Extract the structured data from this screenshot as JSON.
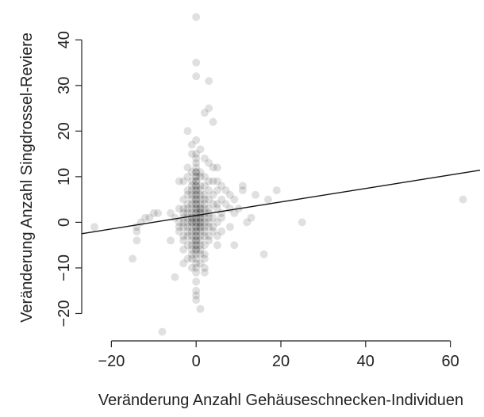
{
  "chart_data": {
    "type": "scatter",
    "title": "",
    "xlabel": "Veränderung Anzahl Gehäuseschnecken-Individuen",
    "ylabel": "Veränderung Anzahl Singdrossel-Reviere",
    "xlim": [
      -27,
      67
    ],
    "ylim": [
      -26,
      47
    ],
    "x_ticks": [
      -20,
      0,
      20,
      40,
      60
    ],
    "x_tick_labels": [
      "−20",
      "0",
      "20",
      "40",
      "60"
    ],
    "y_ticks": [
      -20,
      -10,
      0,
      10,
      20,
      30,
      40
    ],
    "y_tick_labels": [
      "−20",
      "−10",
      "0",
      "10",
      "20",
      "30",
      "40"
    ],
    "grid": false,
    "legend": "none",
    "point_color": "#000000",
    "point_opacity": 0.12,
    "regression_line": {
      "intercept": 1.5,
      "slope": 0.148
    },
    "points": [
      [
        0,
        45
      ],
      [
        0,
        35
      ],
      [
        0,
        32
      ],
      [
        3,
        31
      ],
      [
        3,
        25
      ],
      [
        2,
        24
      ],
      [
        4,
        22
      ],
      [
        -2,
        20
      ],
      [
        0,
        18
      ],
      [
        -1,
        17
      ],
      [
        1,
        16
      ],
      [
        -1,
        15
      ],
      [
        0,
        14
      ],
      [
        2,
        14
      ],
      [
        3,
        13
      ],
      [
        4,
        12
      ],
      [
        5,
        12
      ],
      [
        -2,
        12
      ],
      [
        -1,
        11
      ],
      [
        0,
        11
      ],
      [
        1,
        11
      ],
      [
        0,
        10
      ],
      [
        1,
        10
      ],
      [
        2,
        10
      ],
      [
        -2,
        10
      ],
      [
        -1,
        9
      ],
      [
        0,
        9
      ],
      [
        -3,
        9
      ],
      [
        -4,
        9
      ],
      [
        3,
        9
      ],
      [
        5,
        9
      ],
      [
        4,
        9
      ],
      [
        1,
        8
      ],
      [
        -1,
        8
      ],
      [
        0,
        8
      ],
      [
        2,
        8
      ],
      [
        6,
        8
      ],
      [
        11,
        8
      ],
      [
        -1,
        7
      ],
      [
        0,
        7
      ],
      [
        1,
        7
      ],
      [
        -2,
        7
      ],
      [
        3,
        7
      ],
      [
        5,
        7
      ],
      [
        7,
        7
      ],
      [
        11,
        7
      ],
      [
        19,
        7
      ],
      [
        0,
        6
      ],
      [
        1,
        6
      ],
      [
        -1,
        6
      ],
      [
        2,
        6
      ],
      [
        -2,
        6
      ],
      [
        4,
        6
      ],
      [
        8,
        6
      ],
      [
        14,
        6
      ],
      [
        0,
        5
      ],
      [
        1,
        5
      ],
      [
        -1,
        5
      ],
      [
        2,
        5
      ],
      [
        -3,
        5
      ],
      [
        3,
        5
      ],
      [
        6,
        5
      ],
      [
        9,
        5
      ],
      [
        17,
        5
      ],
      [
        63,
        5
      ],
      [
        0,
        4
      ],
      [
        1,
        4
      ],
      [
        -1,
        4
      ],
      [
        2,
        4
      ],
      [
        -2,
        4
      ],
      [
        4,
        4
      ],
      [
        5,
        4
      ],
      [
        7,
        4
      ],
      [
        0,
        3
      ],
      [
        1,
        3
      ],
      [
        -1,
        3
      ],
      [
        2,
        3
      ],
      [
        -2,
        3
      ],
      [
        3,
        3
      ],
      [
        -3,
        3
      ],
      [
        -4,
        3
      ],
      [
        5,
        3
      ],
      [
        8,
        3
      ],
      [
        10,
        3
      ],
      [
        0,
        2
      ],
      [
        1,
        2
      ],
      [
        -1,
        2
      ],
      [
        2,
        2
      ],
      [
        -2,
        2
      ],
      [
        3,
        2
      ],
      [
        -3,
        2
      ],
      [
        -6,
        2
      ],
      [
        -9,
        2
      ],
      [
        -10,
        2
      ],
      [
        6,
        2
      ],
      [
        9,
        2
      ],
      [
        0,
        1
      ],
      [
        1,
        1
      ],
      [
        -1,
        1
      ],
      [
        2,
        1
      ],
      [
        -2,
        1
      ],
      [
        3,
        1
      ],
      [
        -3,
        1
      ],
      [
        4,
        1
      ],
      [
        -5,
        1
      ],
      [
        6,
        1
      ],
      [
        -11,
        1
      ],
      [
        -12,
        1
      ],
      [
        13,
        1
      ],
      [
        0,
        0
      ],
      [
        1,
        0
      ],
      [
        -1,
        0
      ],
      [
        2,
        0
      ],
      [
        -2,
        0
      ],
      [
        3,
        0
      ],
      [
        -3,
        0
      ],
      [
        5,
        0
      ],
      [
        -4,
        0
      ],
      [
        -13,
        0
      ],
      [
        12,
        0
      ],
      [
        25,
        0
      ],
      [
        0,
        -1
      ],
      [
        1,
        -1
      ],
      [
        -1,
        -1
      ],
      [
        2,
        -1
      ],
      [
        -2,
        -1
      ],
      [
        3,
        -1
      ],
      [
        -3,
        -1
      ],
      [
        4,
        -1
      ],
      [
        -4,
        -1
      ],
      [
        -24,
        -1
      ],
      [
        -14,
        -1
      ],
      [
        8,
        -1
      ],
      [
        0,
        -2
      ],
      [
        1,
        -2
      ],
      [
        -1,
        -2
      ],
      [
        2,
        -2
      ],
      [
        -2,
        -2
      ],
      [
        4,
        -2
      ],
      [
        -4,
        -2
      ],
      [
        6,
        -2
      ],
      [
        -14,
        -2
      ],
      [
        0,
        -3
      ],
      [
        1,
        -3
      ],
      [
        -1,
        -3
      ],
      [
        2,
        -3
      ],
      [
        -2,
        -3
      ],
      [
        3,
        -3
      ],
      [
        -3,
        -3
      ],
      [
        5,
        -3
      ],
      [
        0,
        -4
      ],
      [
        1,
        -4
      ],
      [
        -1,
        -4
      ],
      [
        3,
        -4
      ],
      [
        -3,
        -4
      ],
      [
        -6,
        -4
      ],
      [
        -14,
        -4
      ],
      [
        0,
        -5
      ],
      [
        1,
        -5
      ],
      [
        -1,
        -5
      ],
      [
        2,
        -5
      ],
      [
        -2,
        -5
      ],
      [
        5,
        -5
      ],
      [
        9,
        -5
      ],
      [
        0,
        -6
      ],
      [
        1,
        -6
      ],
      [
        -1,
        -6
      ],
      [
        -3,
        -6
      ],
      [
        0,
        -7
      ],
      [
        1,
        -7
      ],
      [
        2,
        -7
      ],
      [
        -1,
        -7
      ],
      [
        16,
        -7
      ],
      [
        0,
        -8
      ],
      [
        -1,
        -8
      ],
      [
        2,
        -8
      ],
      [
        -2,
        -8
      ],
      [
        -15,
        -8
      ],
      [
        0,
        -9
      ],
      [
        1,
        -9
      ],
      [
        -3,
        -9
      ],
      [
        0,
        -10
      ],
      [
        2,
        -10
      ],
      [
        -1,
        -10
      ],
      [
        2,
        -11
      ],
      [
        0,
        -11
      ],
      [
        -5,
        -12
      ],
      [
        0,
        -13
      ],
      [
        0,
        -15
      ],
      [
        0,
        -16
      ],
      [
        0,
        -17
      ],
      [
        1,
        -19
      ],
      [
        -8,
        -24
      ],
      [
        0,
        0
      ],
      [
        0,
        1
      ],
      [
        0,
        2
      ],
      [
        0,
        3
      ],
      [
        0,
        -1
      ],
      [
        0,
        -2
      ],
      [
        0,
        4
      ],
      [
        0,
        5
      ],
      [
        1,
        1
      ],
      [
        1,
        0
      ],
      [
        -1,
        0
      ],
      [
        1,
        2
      ],
      [
        0,
        6
      ],
      [
        0,
        -3
      ],
      [
        1,
        3
      ],
      [
        -1,
        1
      ],
      [
        0,
        7
      ],
      [
        0,
        -4
      ],
      [
        0,
        8
      ],
      [
        0,
        9
      ],
      [
        0,
        -5
      ],
      [
        1,
        -1
      ],
      [
        0,
        10
      ],
      [
        0,
        -6
      ],
      [
        0,
        11
      ],
      [
        0,
        12
      ],
      [
        0,
        13
      ],
      [
        0,
        15
      ]
    ]
  }
}
